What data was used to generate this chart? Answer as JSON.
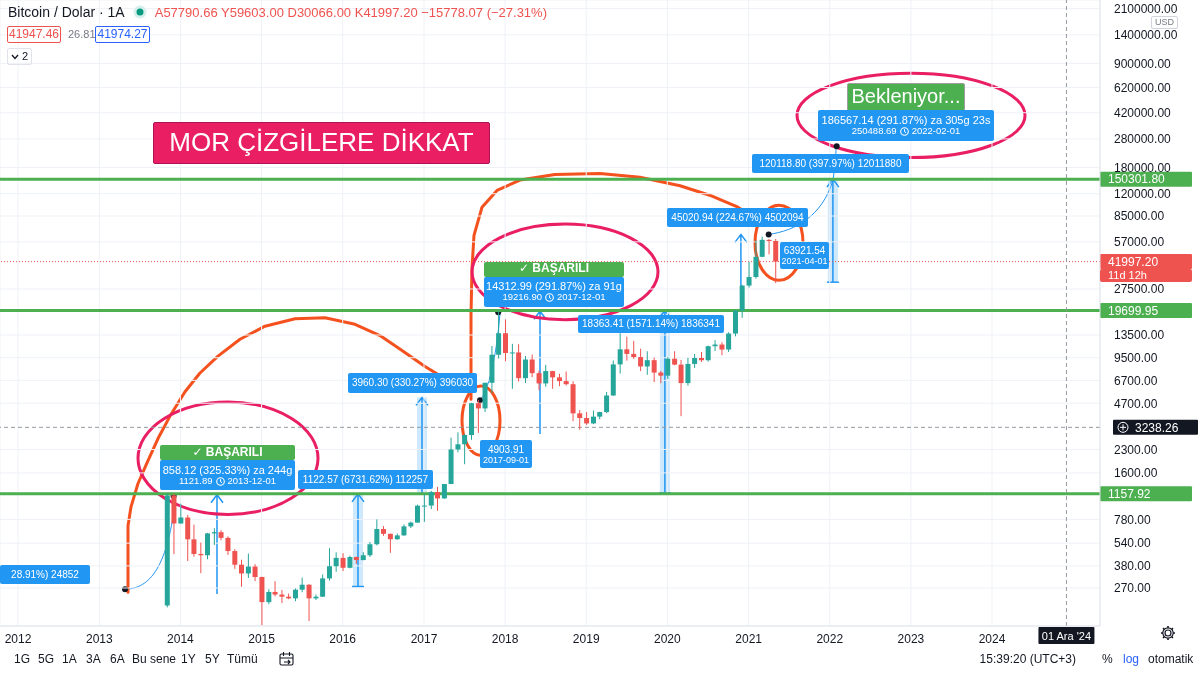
{
  "chart_data": {
    "type": "candlestick",
    "title": "Bitcoin / Dolar · 1A",
    "subtitle": "A57790.66 Y59603.00 D30066.00 K41997.20 −15778.07 (−27.31%)",
    "ylabel": "USD",
    "x": [
      "2013-11",
      "2013-12",
      "2014-01",
      "2014-02",
      "2014-03",
      "2014-04",
      "2014-05",
      "2014-06",
      "2014-07",
      "2014-08",
      "2014-09",
      "2014-10",
      "2014-11",
      "2014-12",
      "2015-01",
      "2015-02",
      "2015-03",
      "2015-04",
      "2015-05",
      "2015-06",
      "2015-07",
      "2015-08",
      "2015-09",
      "2015-10",
      "2015-11",
      "2015-12",
      "2016-01",
      "2016-02",
      "2016-03",
      "2016-04",
      "2016-05",
      "2016-06",
      "2016-07",
      "2016-08",
      "2016-09",
      "2016-10",
      "2016-11",
      "2016-12",
      "2017-01",
      "2017-02",
      "2017-03",
      "2017-04",
      "2017-05",
      "2017-06",
      "2017-07",
      "2017-08",
      "2017-09",
      "2017-10",
      "2017-11",
      "2017-12",
      "2018-01",
      "2018-02",
      "2018-03",
      "2018-04",
      "2018-05",
      "2018-06",
      "2018-07",
      "2018-08",
      "2018-09",
      "2018-10",
      "2018-11",
      "2018-12",
      "2019-01",
      "2019-02",
      "2019-03",
      "2019-04",
      "2019-05",
      "2019-06",
      "2019-07",
      "2019-08",
      "2019-09",
      "2019-10",
      "2019-11",
      "2019-12",
      "2020-01",
      "2020-02",
      "2020-03",
      "2020-04",
      "2020-05",
      "2020-06",
      "2020-07",
      "2020-08",
      "2020-09",
      "2020-10",
      "2020-11",
      "2020-12",
      "2021-01",
      "2021-02",
      "2021-03",
      "2021-04",
      "2021-05"
    ],
    "ohlc": [
      [
        206,
        1163,
        200,
        1130
      ],
      [
        1130,
        1160,
        456,
        732
      ],
      [
        732,
        995,
        730,
        803
      ],
      [
        803,
        836,
        410,
        573
      ],
      [
        573,
        718,
        438,
        457
      ],
      [
        457,
        545,
        340,
        448
      ],
      [
        448,
        633,
        421,
        628
      ],
      [
        628,
        680,
        525,
        640
      ],
      [
        640,
        660,
        565,
        586
      ],
      [
        586,
        600,
        450,
        478
      ],
      [
        478,
        492,
        363,
        387
      ],
      [
        387,
        418,
        275,
        338
      ],
      [
        338,
        460,
        315,
        376
      ],
      [
        376,
        390,
        300,
        320
      ],
      [
        320,
        322,
        152,
        217
      ],
      [
        217,
        265,
        210,
        254
      ],
      [
        254,
        300,
        237,
        244
      ],
      [
        244,
        262,
        214,
        236
      ],
      [
        236,
        248,
        227,
        230
      ],
      [
        230,
        268,
        220,
        263
      ],
      [
        263,
        317,
        253,
        284
      ],
      [
        284,
        286,
        162,
        230
      ],
      [
        230,
        244,
        224,
        236
      ],
      [
        236,
        333,
        235,
        313
      ],
      [
        313,
        500,
        303,
        378
      ],
      [
        378,
        469,
        347,
        430
      ],
      [
        430,
        463,
        351,
        369
      ],
      [
        369,
        445,
        366,
        436
      ],
      [
        436,
        439,
        392,
        416
      ],
      [
        416,
        470,
        414,
        448
      ],
      [
        448,
        550,
        436,
        531
      ],
      [
        531,
        780,
        522,
        672
      ],
      [
        672,
        703,
        605,
        624
      ],
      [
        624,
        626,
        465,
        574
      ],
      [
        574,
        627,
        568,
        609
      ],
      [
        609,
        722,
        605,
        700
      ],
      [
        700,
        754,
        682,
        742
      ],
      [
        742,
        980,
        740,
        964
      ],
      [
        964,
        1153,
        751,
        966
      ],
      [
        966,
        1213,
        914,
        1190
      ],
      [
        1190,
        1290,
        891,
        1079
      ],
      [
        1079,
        1350,
        1072,
        1348
      ],
      [
        1348,
        2760,
        1345,
        2300
      ],
      [
        2300,
        2999,
        2200,
        2492
      ],
      [
        2492,
        2914,
        1830,
        2875
      ],
      [
        2875,
        4736,
        2671,
        4703
      ],
      [
        4703,
        4950,
        2972,
        4339
      ],
      [
        4339,
        6470,
        4107,
        6449
      ],
      [
        6449,
        11400,
        5519,
        9946
      ],
      [
        9946,
        19666,
        9380,
        13880
      ],
      [
        13880,
        17180,
        9005,
        10221
      ],
      [
        10221,
        11780,
        5873,
        10311
      ],
      [
        10311,
        11710,
        6581,
        6926
      ],
      [
        6926,
        9759,
        6430,
        9240
      ],
      [
        9240,
        9990,
        7035,
        7486
      ],
      [
        7486,
        7774,
        5750,
        6385
      ],
      [
        6385,
        8500,
        6070,
        7730
      ],
      [
        7730,
        7760,
        5880,
        7011
      ],
      [
        7011,
        7410,
        6120,
        6620
      ],
      [
        6620,
        7680,
        6180,
        6310
      ],
      [
        6310,
        6600,
        3560,
        4020
      ],
      [
        4020,
        4230,
        3120,
        3740
      ],
      [
        3740,
        4100,
        3360,
        3440
      ],
      [
        3440,
        4200,
        3400,
        3820
      ],
      [
        3820,
        4120,
        3670,
        4100
      ],
      [
        4100,
        5600,
        4040,
        5300
      ],
      [
        5300,
        9100,
        5260,
        8570
      ],
      [
        8570,
        13880,
        7440,
        10820
      ],
      [
        10820,
        13160,
        9080,
        10080
      ],
      [
        10080,
        12320,
        9340,
        9600
      ],
      [
        9600,
        10920,
        7730,
        8300
      ],
      [
        8300,
        10500,
        7300,
        9150
      ],
      [
        9150,
        9510,
        6520,
        7550
      ],
      [
        7550,
        7750,
        6410,
        7200
      ],
      [
        7200,
        9580,
        6860,
        9350
      ],
      [
        9350,
        10500,
        8450,
        8540
      ],
      [
        8540,
        9190,
        3850,
        6420
      ],
      [
        6420,
        9470,
        6170,
        8630
      ],
      [
        8630,
        10080,
        8110,
        9460
      ],
      [
        9460,
        10380,
        8900,
        9140
      ],
      [
        9140,
        11450,
        8950,
        11350
      ],
      [
        11350,
        12470,
        10540,
        11650
      ],
      [
        11650,
        12080,
        9880,
        10780
      ],
      [
        10780,
        14100,
        10380,
        13810
      ],
      [
        13810,
        19890,
        13220,
        19700
      ],
      [
        19700,
        29300,
        17600,
        28990
      ],
      [
        28990,
        41950,
        28130,
        33100
      ],
      [
        33100,
        58350,
        32300,
        45240
      ],
      [
        45240,
        61790,
        44960,
        58790
      ],
      [
        58790,
        59500,
        47000,
        57790.66
      ],
      [
        57790.66,
        59603,
        30066,
        41997.2
      ]
    ],
    "colors": [
      "#26a69a",
      "#ef5350",
      "#26a69a",
      "#ef5350",
      "#ef5350",
      "#ef5350",
      "#26a69a",
      "#26a69a",
      "#ef5350",
      "#ef5350",
      "#ef5350",
      "#ef5350",
      "#26a69a",
      "#ef5350",
      "#ef5350",
      "#26a69a",
      "#ef5350",
      "#ef5350",
      "#ef5350",
      "#26a69a",
      "#26a69a",
      "#ef5350",
      "#26a69a",
      "#26a69a",
      "#26a69a",
      "#26a69a",
      "#ef5350",
      "#26a69a",
      "#ef5350",
      "#26a69a",
      "#26a69a",
      "#26a69a",
      "#ef5350",
      "#ef5350",
      "#26a69a",
      "#26a69a",
      "#26a69a",
      "#26a69a",
      "#26a69a",
      "#26a69a",
      "#ef5350",
      "#26a69a",
      "#26a69a",
      "#26a69a",
      "#26a69a",
      "#26a69a",
      "#ef5350",
      "#26a69a",
      "#26a69a",
      "#26a69a",
      "#ef5350",
      "#26a69a",
      "#ef5350",
      "#26a69a",
      "#ef5350",
      "#ef5350",
      "#26a69a",
      "#ef5350",
      "#ef5350",
      "#ef5350",
      "#ef5350",
      "#ef5350",
      "#ef5350",
      "#26a69a",
      "#26a69a",
      "#26a69a",
      "#26a69a",
      "#26a69a",
      "#ef5350",
      "#ef5350",
      "#ef5350",
      "#26a69a",
      "#ef5350",
      "#ef5350",
      "#26a69a",
      "#ef5350",
      "#ef5350",
      "#26a69a",
      "#26a69a",
      "#ef5350",
      "#26a69a",
      "#26a69a",
      "#ef5350",
      "#26a69a",
      "#26a69a",
      "#26a69a",
      "#26a69a",
      "#26a69a",
      "#26a69a",
      "#ef5350",
      "#ef5350"
    ],
    "xlim": [
      "2011-10-12",
      "2025-05-01"
    ],
    "xticks": [
      "2012",
      "2013",
      "2014",
      "2015",
      "2016",
      "2017",
      "2018",
      "2019",
      "2020",
      "2021",
      "2022",
      "2023",
      "2024"
    ],
    "ylim": [
      150,
      2400000
    ],
    "yticks": [
      {
        "value": 270,
        "label": "270.00"
      },
      {
        "value": 380,
        "label": "380.00"
      },
      {
        "value": 540,
        "label": "540.00"
      },
      {
        "value": 780,
        "label": "780.00"
      },
      {
        "value": 1600,
        "label": "1600.00"
      },
      {
        "value": 2300,
        "label": "2300.00"
      },
      {
        "value": 4700,
        "label": "4700.00"
      },
      {
        "value": 6700,
        "label": "6700.00"
      },
      {
        "value": 9500,
        "label": "9500.00"
      },
      {
        "value": 13500,
        "label": "13500.00"
      },
      {
        "value": 27500,
        "label": "27500.00"
      },
      {
        "value": 57000,
        "label": "57000.00"
      },
      {
        "value": 85000,
        "label": "85000.00"
      },
      {
        "value": 120000,
        "label": "120000.00"
      },
      {
        "value": 180000,
        "label": "180000.00"
      },
      {
        "value": 280000,
        "label": "280000.00"
      },
      {
        "value": 420000,
        "label": "420000.00"
      },
      {
        "value": 620000,
        "label": "620000.00"
      },
      {
        "value": 900000,
        "label": "900000.00"
      },
      {
        "value": 1400000,
        "label": "1400000.00"
      },
      {
        "value": 2100000,
        "label": "2100000.00"
      }
    ],
    "log": true,
    "grid": true,
    "ref_lines": [
      {
        "axis": "y",
        "value": 150301.8,
        "label": "150301.80",
        "color": "#4caf50"
      },
      {
        "axis": "y",
        "value": 19699.95,
        "label": "19699.95",
        "color": "#4caf50"
      },
      {
        "axis": "y",
        "value": 1157.92,
        "label": "1157.92",
        "color": "#4caf50"
      },
      {
        "axis": "y",
        "value": 41997.2,
        "label": "41997.20",
        "color": "#ef5350",
        "line_style": "dotted"
      },
      {
        "axis": "y",
        "value": 3238.26,
        "label": "3238.26",
        "color": "#9598a1",
        "line_style": "dashed"
      },
      {
        "axis": "x",
        "value": "2024-12-01",
        "label": "01 Ara '24",
        "color": "#9598a1",
        "line_style": "dashed"
      }
    ],
    "annotations": [
      "41947.46",
      "26.81",
      "41974.27",
      "2",
      "MOR ÇİZGİLERE DİKKAT",
      "✓ BAŞARILI",
      "858.12 (325.33%) za 244g",
      {
        "text": "1121.89",
        "x": "2013-12-01",
        "y": 1121.89
      },
      "2013-12-01",
      {
        "text": "1122.57 (6731.62%) 112257",
        "x": "2016-03-10",
        "y": 1157.92
      },
      "28.91%) 24852",
      {
        "text": "3960.30 (330.27%) 396030",
        "x": "2016-12-23",
        "y": 1157.92
      },
      "4903.91",
      "2017-09-01",
      "✓ BAŞARILI",
      "14312.99 (291.87%) za 91g",
      {
        "text": "19216.90",
        "x": "2017-12-01",
        "y": 19216.9
      },
      "2017-12-01",
      {
        "text": "18363.41 (1571.14%) 1836341",
        "x": "2019-12-21",
        "y": 19699.95
      },
      {
        "text": "45020.94 (224.67%) 4502094",
        "x": "2020-11-27",
        "y": 19699.95
      },
      {
        "text": "63921.54",
        "x": "2021-04-01",
        "y": 63921.54
      },
      "2021-04-01",
      {
        "text": "120118.80 (397.97%) 12011880",
        "x": "2022-01-15",
        "y": 150301.8
      },
      "Bekleniyor...",
      "186567.14 (291.87%) za 305g 23s",
      {
        "text": "250488.69",
        "x": "2022-02-01",
        "y": 250488.69
      },
      "2022-02-01",
      "11d 12h",
      "1G",
      "5G",
      "1A",
      "3A",
      "6A",
      "Bu sene",
      "1Y",
      "5Y",
      "Tümü",
      "15:39:20 (UTC+3)",
      "%",
      "log",
      "otomatik"
    ]
  }
}
